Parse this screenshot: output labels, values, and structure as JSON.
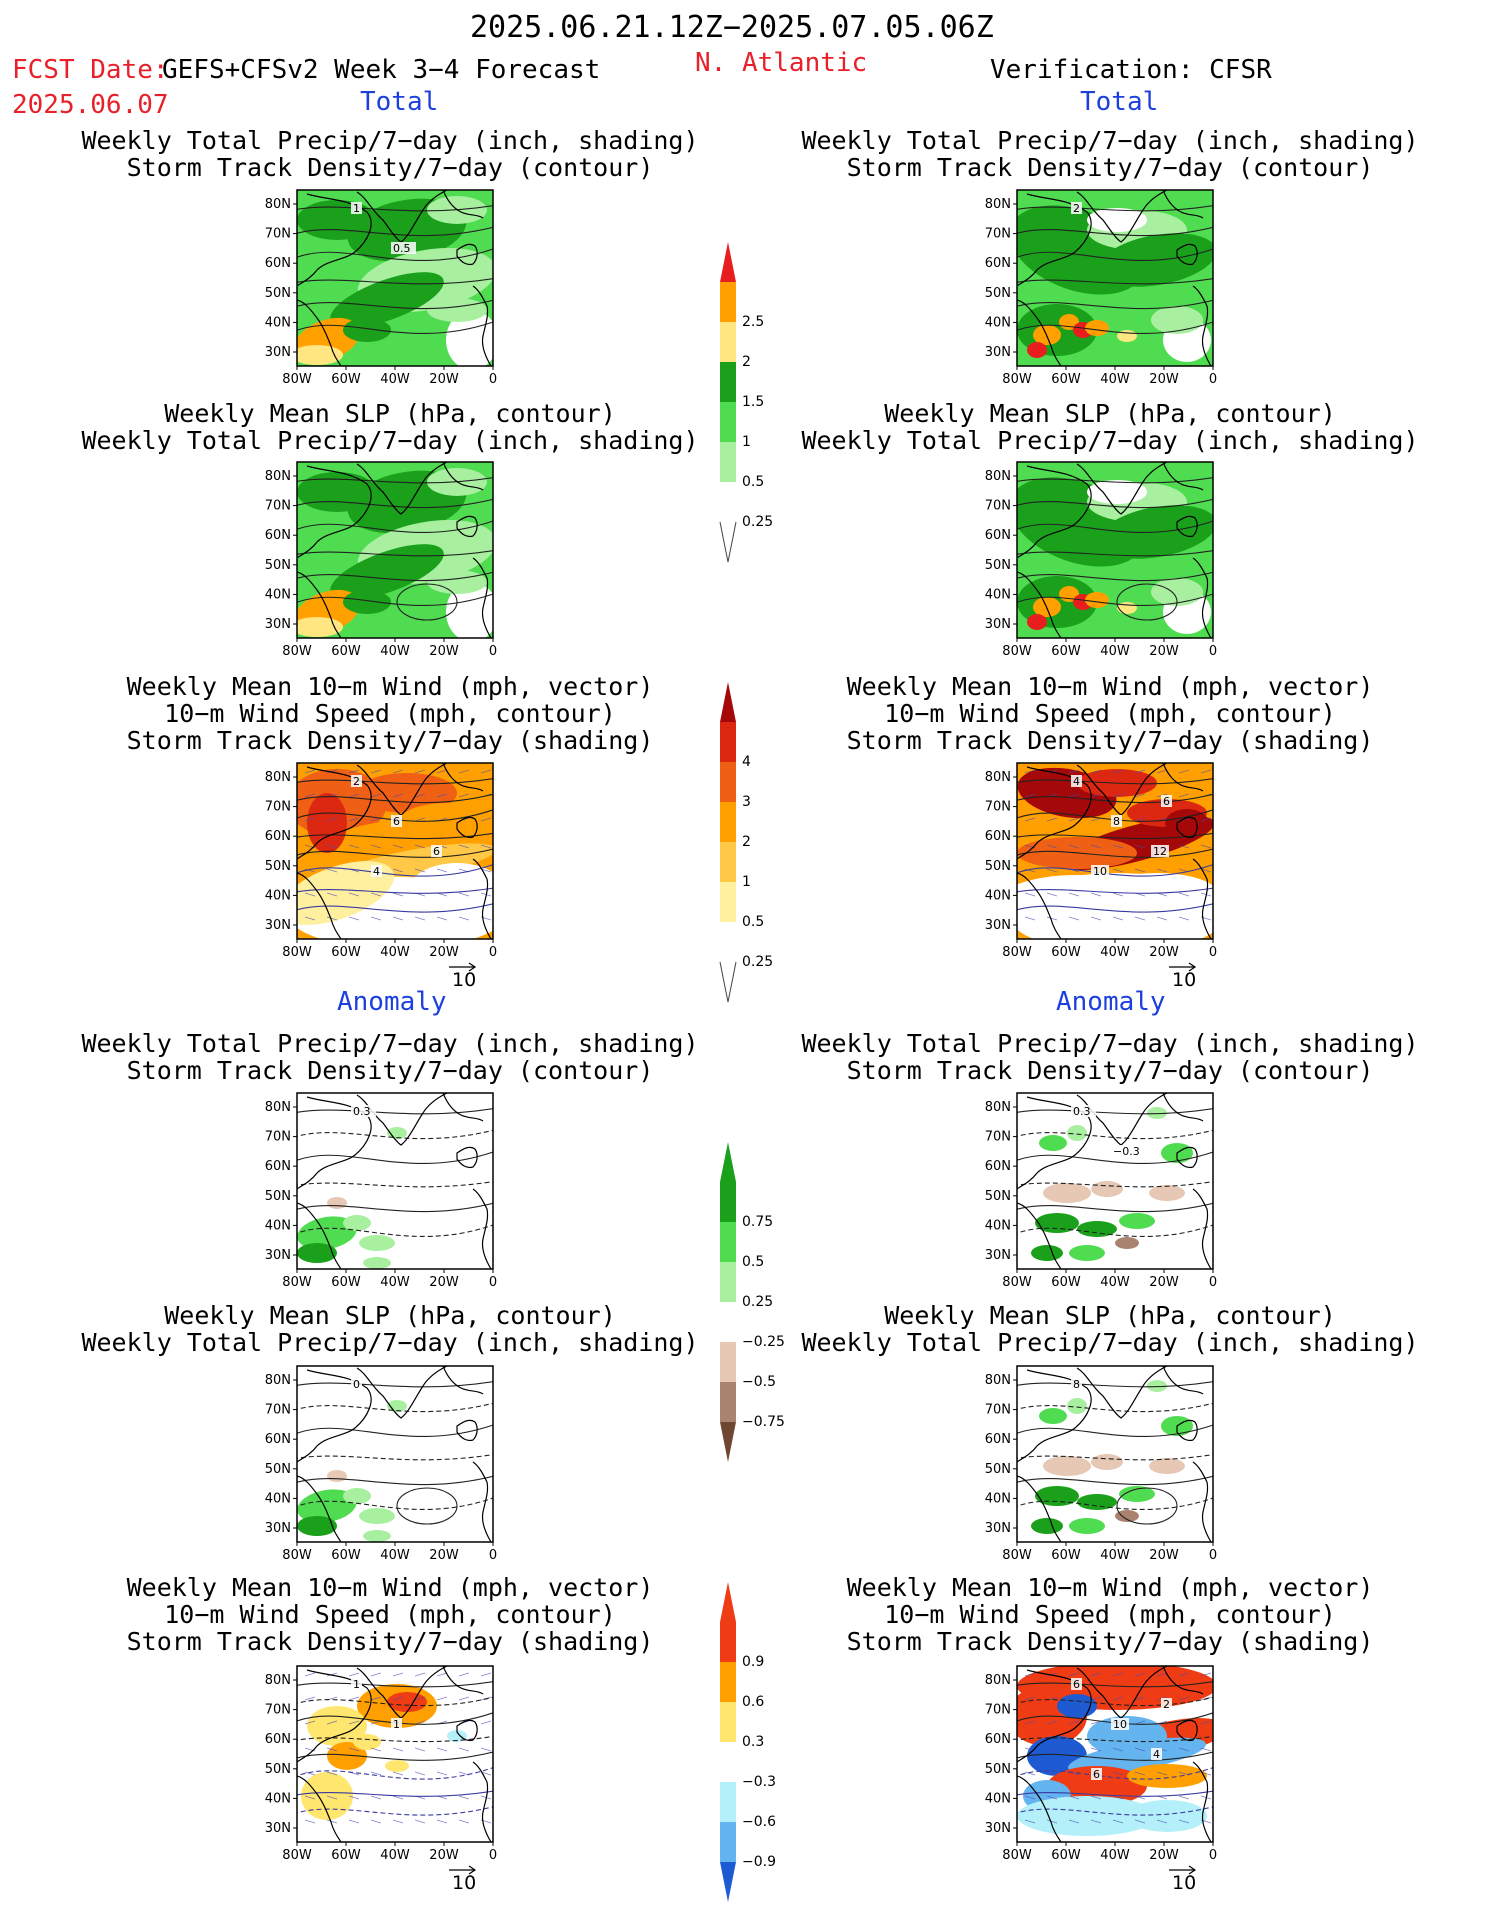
{
  "header": {
    "date_range": "2025.06.21.12Z−2025.07.05.06Z",
    "fcst_label": "FCST Date:",
    "fcst_date": "2025.06.07",
    "forecast_product": "GEFS+CFSv2 Week 3−4 Forecast",
    "region": "N. Atlantic",
    "verification": "Verification: CFSR"
  },
  "sections": {
    "total": "Total",
    "anomaly": "Anomaly"
  },
  "axes": {
    "lat_ticks": [
      "80N",
      "70N",
      "60N",
      "50N",
      "40N",
      "30N"
    ],
    "lon_ticks": [
      "80W",
      "60W",
      "40W",
      "20W",
      "0"
    ]
  },
  "vector_ref": "10",
  "panels": {
    "precip_storm": [
      "Weekly Total Precip/7−day (inch, shading)",
      "Storm Track Density/7−day (contour)"
    ],
    "slp_precip": [
      "Weekly Mean SLP (hPa, contour)",
      "Weekly Total Precip/7−day (inch, shading)"
    ],
    "wind_storm": [
      "Weekly Mean 10−m Wind (mph, vector)",
      "10−m Wind Speed (mph, contour)",
      "Storm Track Density/7−day (shading)"
    ]
  },
  "contour_labels": {
    "fc_precip": [
      "1",
      "0.5"
    ],
    "ver_precip": [
      "2"
    ],
    "fc_wind": [
      "2",
      "6",
      "6",
      "4"
    ],
    "ver_wind": [
      "4",
      "8",
      "12",
      "10",
      "6"
    ],
    "fc_precip_anom": [
      "0.3"
    ],
    "ver_precip_anom": [
      "0.3",
      "−0.3"
    ],
    "fc_slp_anom": [
      "0"
    ],
    "ver_slp_anom": [
      "8"
    ],
    "fc_wind_anom": [
      "1",
      "1"
    ],
    "ver_wind_anom": [
      "6",
      "10",
      "4",
      "6",
      "2"
    ]
  },
  "colorbars": {
    "precip_total": {
      "labels": [
        "2.5",
        "2",
        "1.5",
        "1",
        "0.5",
        "0.25"
      ],
      "colors": [
        "#e81e1e",
        "#ffa000",
        "#ffe680",
        "#1aa01a",
        "#50dc50",
        "#a8f0a0"
      ]
    },
    "storm_total": {
      "labels": [
        "4",
        "3",
        "2",
        "1",
        "0.5",
        "0.25"
      ],
      "colors": [
        "#a40808",
        "#dc2810",
        "#f06014",
        "#ffa000",
        "#ffc846",
        "#fff0a0"
      ]
    },
    "precip_anom": {
      "labels": [
        "0.75",
        "0.5",
        "0.25",
        "−0.25",
        "−0.5",
        "−0.75"
      ],
      "colors": [
        "#1aa01a",
        "#50dc50",
        "#a8f0a0",
        "#e6c8b4",
        "#aa8270",
        "#6e4632"
      ]
    },
    "storm_anom": {
      "labels": [
        "0.9",
        "0.6",
        "0.3",
        "−0.3",
        "−0.6",
        "−0.9"
      ],
      "colors": [
        "#f03c14",
        "#ffa000",
        "#ffe66e",
        "#b4f0fa",
        "#64b4f0",
        "#1e5ad2"
      ]
    }
  }
}
